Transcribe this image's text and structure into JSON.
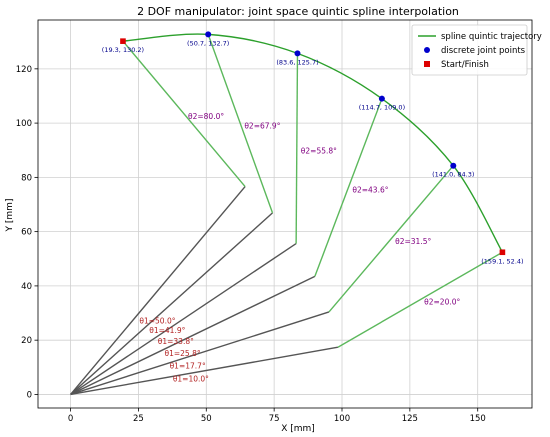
{
  "chart_data": {
    "type": "line",
    "title": "2 DOF manipulator: joint space quintic spline interpolation",
    "xlabel": "X [mm]",
    "ylabel": "Y [mm]",
    "xlim": [
      -12,
      170
    ],
    "ylim": [
      -5,
      138
    ],
    "xticks": [
      0,
      25,
      50,
      75,
      100,
      125,
      150
    ],
    "yticks": [
      0,
      20,
      40,
      60,
      80,
      100,
      120
    ],
    "grid": true,
    "legend": {
      "placement": "top-right",
      "entries": [
        {
          "name": "spline quintic trajectory",
          "marker": "line",
          "color": "#2ca02c"
        },
        {
          "name": "discrete joint points",
          "marker": "circle",
          "color": "#0000cc"
        },
        {
          "name": "Start/Finish",
          "marker": "square",
          "color": "#dd0000"
        }
      ]
    },
    "trajectory": [
      [
        19.3,
        130.2
      ],
      [
        50.7,
        132.7
      ],
      [
        83.6,
        125.7
      ],
      [
        114.7,
        109.0
      ],
      [
        141.0,
        84.3
      ],
      [
        159.1,
        52.4
      ]
    ],
    "points": [
      {
        "x": 19.3,
        "y": 130.2,
        "label": "(19.3, 130.2)",
        "kind": "start"
      },
      {
        "x": 50.7,
        "y": 132.7,
        "label": "(50.7, 132.7)",
        "kind": "joint"
      },
      {
        "x": 83.6,
        "y": 125.7,
        "label": "(83.6, 125.7)",
        "kind": "joint"
      },
      {
        "x": 114.7,
        "y": 109.0,
        "label": "(114.7, 109.0)",
        "kind": "joint"
      },
      {
        "x": 141.0,
        "y": 84.3,
        "label": "(141.0, 84.3)",
        "kind": "joint"
      },
      {
        "x": 159.1,
        "y": 52.4,
        "label": "(159.1, 52.4)",
        "kind": "finish"
      }
    ],
    "arms": [
      {
        "elbow": [
          64.3,
          76.6
        ],
        "end": [
          19.3,
          130.2
        ],
        "theta1": "θ1=50.0°",
        "theta2": "θ2=80.0°"
      },
      {
        "elbow": [
          74.4,
          66.9
        ],
        "end": [
          50.7,
          132.7
        ],
        "theta1": "θ1=41.9°",
        "theta2": "θ2=67.9°"
      },
      {
        "elbow": [
          83.1,
          55.6
        ],
        "end": [
          83.6,
          125.7
        ],
        "theta1": "θ1=33.8°",
        "theta2": "θ2=55.8°"
      },
      {
        "elbow": [
          90.0,
          43.5
        ],
        "end": [
          114.7,
          109.0
        ],
        "theta1": "θ1=25.8°",
        "theta2": "θ2=43.6°"
      },
      {
        "elbow": [
          95.2,
          30.4
        ],
        "end": [
          141.0,
          84.3
        ],
        "theta1": "θ1=17.7°",
        "theta2": "θ2=31.5°"
      },
      {
        "elbow": [
          98.5,
          17.4
        ],
        "end": [
          159.1,
          52.4
        ],
        "theta1": "θ1=10.0°",
        "theta2": "θ2=20.0°"
      }
    ],
    "colors": {
      "link1": "#555555",
      "link2": "#5cb85c",
      "trajectory": "#2ca02c",
      "joint_point": "#0000cc",
      "endpoint": "#dd0000",
      "grid": "#d0d0d0"
    }
  }
}
